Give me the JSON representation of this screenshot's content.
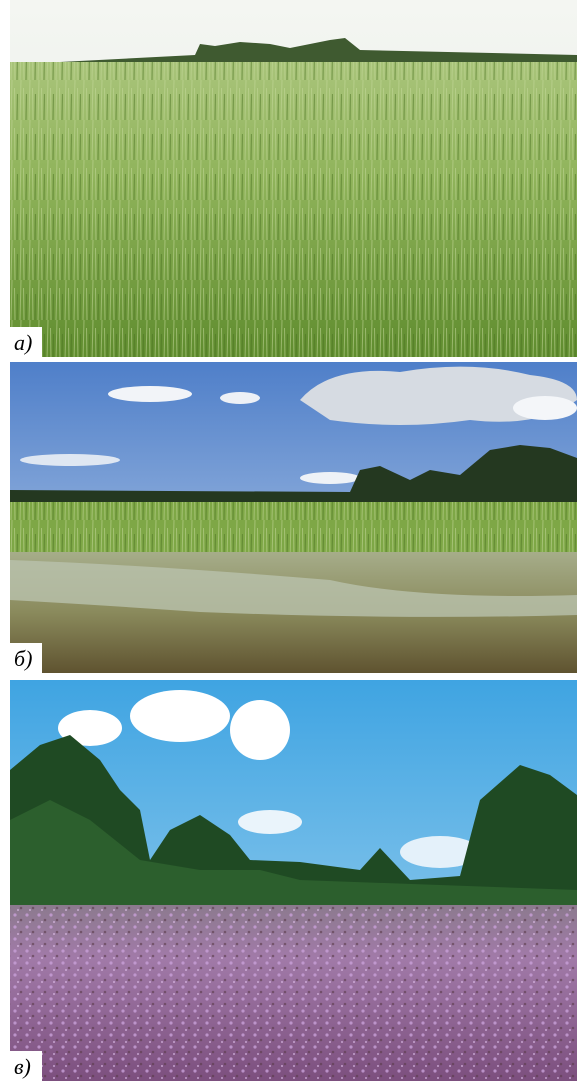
{
  "panels": [
    {
      "label": "а)"
    },
    {
      "label": "б)"
    },
    {
      "label": "в)"
    }
  ]
}
